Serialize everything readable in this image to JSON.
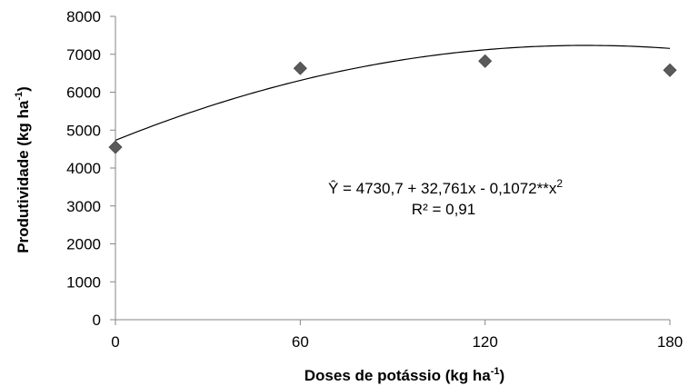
{
  "chart_data": {
    "type": "scatter",
    "x": [
      0,
      60,
      120,
      180
    ],
    "y": [
      4550,
      6630,
      6820,
      6580
    ],
    "xticks": [
      "0",
      "60",
      "120",
      "180"
    ],
    "yticks": [
      "0",
      "1000",
      "2000",
      "3000",
      "4000",
      "5000",
      "6000",
      "7000",
      "8000"
    ],
    "xlim": [
      0,
      180
    ],
    "ylim": [
      0,
      8000
    ],
    "xlabel_main": "Doses de potássio (kg ha",
    "xlabel_sup": "-1",
    "xlabel_end": ")",
    "ylabel_main": "Produtividade (kg ha",
    "ylabel_sup": "-1",
    "ylabel_end": ")",
    "grid": false,
    "marker": "diamond",
    "marker_color": "#5a5a5a",
    "trendline": {
      "type": "polynomial",
      "intercept": 4730.7,
      "linear": 32.761,
      "quadratic": -0.1072
    },
    "equation_main": "Ŷ =  4730,7 + 32,761x - 0,1072**x",
    "equation_sup": "2",
    "r2_text": "R² = 0,91"
  }
}
